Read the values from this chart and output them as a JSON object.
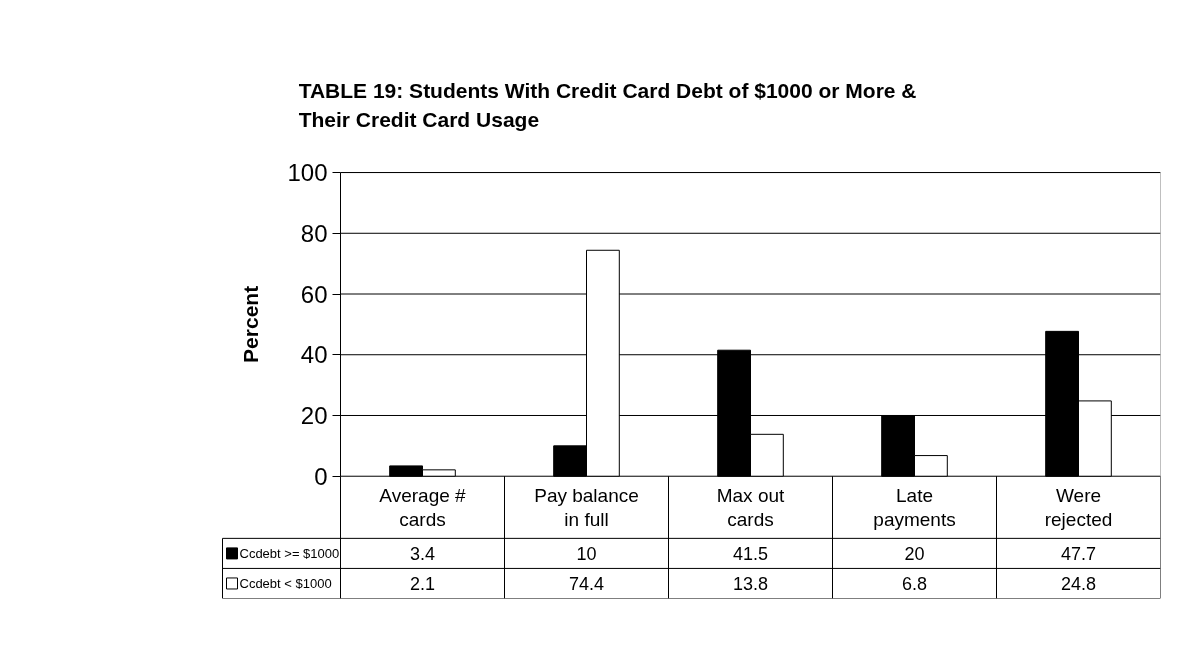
{
  "chart_data": {
    "type": "bar",
    "title": "TABLE 19:  Students With Credit Card Debt of $1000 or More & Their Credit Card Usage",
    "ylabel": "Percent",
    "categories": [
      "Average # cards",
      "Pay balance in full",
      "Max out cards",
      "Late payments",
      "Were rejected"
    ],
    "series": [
      {
        "name": "Ccdebt >= $1000",
        "color": "#000000",
        "values": [
          3.4,
          10,
          41.5,
          20,
          47.7
        ]
      },
      {
        "name": "Ccdebt < $1000",
        "color": "#ffffff",
        "values": [
          2.1,
          74.4,
          13.8,
          6.8,
          24.8
        ]
      }
    ],
    "ylim": [
      0,
      100
    ],
    "yticks": [
      0,
      20,
      40,
      60,
      80,
      100
    ],
    "grid": "y",
    "data_labels": true,
    "legend": "bottom"
  }
}
